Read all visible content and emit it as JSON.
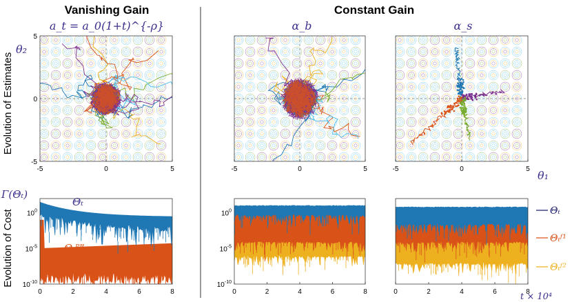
{
  "headers": {
    "left": "Vanishing Gain",
    "right": "Constant Gain",
    "gain_formula": "a_t = a_0(1+t)^{-ρ}",
    "alpha_b": "α_b",
    "alpha_s": "α_s"
  },
  "row_labels": {
    "top": "Evolution of Estimates",
    "bottom": "Evolution of Cost"
  },
  "axis_symbols": {
    "theta2": "θ₂",
    "theta1": "θ₁",
    "gamma": "Γ(Θₜ)",
    "t_scale": "t × 10⁴"
  },
  "legend": {
    "items": [
      {
        "label": "Θₜ",
        "color": "#1f1f6e"
      },
      {
        "label": "Θₜᶠ¹",
        "color": "#e05a1c"
      },
      {
        "label": "Θₜᶠ²",
        "color": "#f0b020"
      }
    ]
  },
  "annotations": {
    "theta_t": "Θₜ",
    "theta_pr": "Θₜᴾᴿ"
  },
  "colors": {
    "blue": "#1f77b4",
    "orange": "#d95319",
    "yellow": "#edb120",
    "purple": "#7e2f8e",
    "green": "#77ac30",
    "cyan": "#4dbeee"
  },
  "chart_data": [
    {
      "type": "scatter",
      "name": "Vanishing Gain estimates",
      "xlim": [
        -5,
        5
      ],
      "ylim": [
        -5,
        5
      ],
      "xticks": [
        "-5",
        "0",
        "5"
      ],
      "yticks": [
        "5",
        "0",
        "-5"
      ],
      "cluster_center": [
        0,
        0
      ],
      "cluster_radius": 1.2
    },
    {
      "type": "scatter",
      "name": "Constant Gain α_b estimates",
      "xlim": [
        -5,
        5
      ],
      "ylim": [
        -5,
        5
      ],
      "xticks": [
        "-5",
        "0",
        "5"
      ],
      "cluster_center": [
        0,
        0
      ],
      "cluster_radius": 1.5
    },
    {
      "type": "scatter",
      "name": "Constant Gain α_s estimates",
      "xlim": [
        -5,
        5
      ],
      "ylim": [
        -5,
        5
      ],
      "xticks": [
        "-5",
        "0",
        "5"
      ],
      "arms": [
        {
          "color": "blue",
          "end": [
            -0.4,
            4.0
          ]
        },
        {
          "color": "purple",
          "end": [
            3.2,
            0.6
          ]
        },
        {
          "color": "green",
          "end": [
            0.6,
            -3.2
          ]
        },
        {
          "color": "orange",
          "end": [
            -3.8,
            -3.6
          ]
        }
      ]
    },
    {
      "type": "line",
      "name": "Vanishing Gain cost",
      "xlim": [
        0,
        8
      ],
      "ylog": true,
      "ylim_exp": [
        -10,
        2
      ],
      "xticks": [
        "0",
        "2",
        "4",
        "6",
        "8"
      ],
      "yticks": [
        "10^0",
        "10^-5",
        "10^-10"
      ],
      "series": [
        {
          "color": "blue",
          "start_exp": 1.5,
          "end_exp": -0.6,
          "floor_exp": -3.2
        },
        {
          "color": "orange",
          "start_exp": -5.0,
          "end_exp": -4.3,
          "floor_exp": -10
        }
      ]
    },
    {
      "type": "line",
      "name": "Constant Gain α_b cost",
      "xlim": [
        0,
        8
      ],
      "ylog": true,
      "ylim_exp": [
        -10,
        2
      ],
      "xticks": [
        "0",
        "2",
        "4",
        "6",
        "8"
      ],
      "yticks": [
        "10^0",
        "10^-5",
        "10^-10"
      ],
      "series": [
        {
          "color": "blue",
          "top_exp": 1.0,
          "bottom_exp": -0.2
        },
        {
          "color": "orange",
          "top_exp": -0.2,
          "bottom_exp": -4.0
        },
        {
          "color": "yellow",
          "top_exp": -0.2,
          "bottom_exp": -6.0
        }
      ]
    },
    {
      "type": "line",
      "name": "Constant Gain α_s cost",
      "xlim": [
        0,
        8
      ],
      "ylog": true,
      "ylim_exp": [
        -10,
        2
      ],
      "xticks": [
        "0",
        "2",
        "4",
        "6",
        "8"
      ],
      "series": [
        {
          "color": "blue",
          "top_exp": 0.8,
          "bottom_exp": -1.5
        },
        {
          "color": "orange",
          "top_exp": -1.5,
          "bottom_exp": -4.0
        },
        {
          "color": "yellow",
          "top_exp": -4.0,
          "bottom_exp": -7.0
        }
      ]
    }
  ]
}
